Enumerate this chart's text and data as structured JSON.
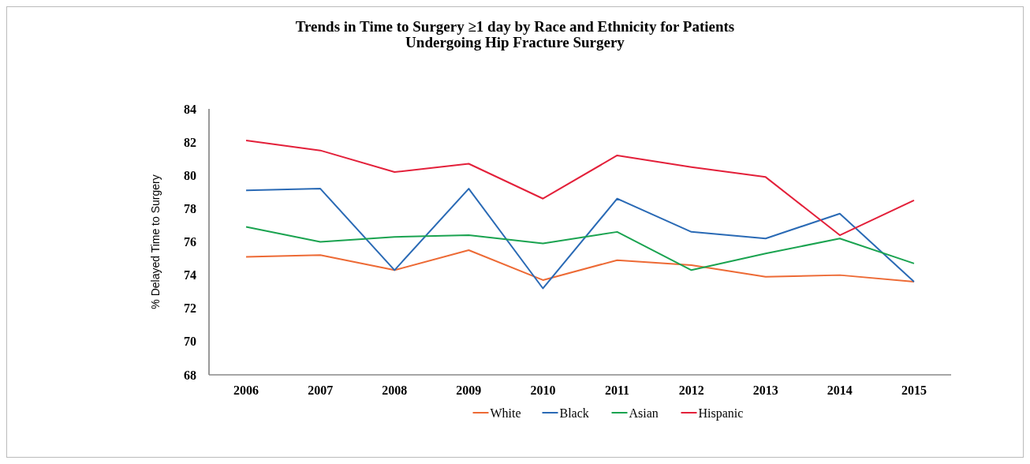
{
  "chart_data": {
    "type": "line",
    "title": "Trends in Time to Surgery ≥1 day by Race and Ethnicity for Patients\nUndergoing Hip Fracture Surgery",
    "ylabel": "%  Delayed Time to Surgery",
    "categories": [
      "2006",
      "2007",
      "2008",
      "2009",
      "2010",
      "2011",
      "2012",
      "2013",
      "2014",
      "2015"
    ],
    "series": [
      {
        "name": "White",
        "color": "#ed6a35",
        "values": [
          75.1,
          75.2,
          74.3,
          75.5,
          73.7,
          74.9,
          74.6,
          73.9,
          74.0,
          73.6
        ]
      },
      {
        "name": "Black",
        "color": "#2a6ab5",
        "values": [
          79.1,
          79.2,
          74.3,
          79.2,
          73.2,
          78.6,
          76.6,
          76.2,
          77.7,
          73.6
        ]
      },
      {
        "name": "Asian",
        "color": "#1aa350",
        "values": [
          76.9,
          76.0,
          76.3,
          76.4,
          75.9,
          76.6,
          74.3,
          75.3,
          76.2,
          74.7
        ]
      },
      {
        "name": "Hispanic",
        "color": "#e3203a",
        "values": [
          82.1,
          81.5,
          80.2,
          80.7,
          78.6,
          81.2,
          80.5,
          79.9,
          76.4,
          78.5
        ]
      }
    ],
    "ylim": [
      68,
      84
    ],
    "yticks": [
      68,
      70,
      72,
      74,
      76,
      78,
      80,
      82,
      84
    ],
    "legend": "bottom",
    "grid": false,
    "marker": "none",
    "line_style": "solid"
  }
}
